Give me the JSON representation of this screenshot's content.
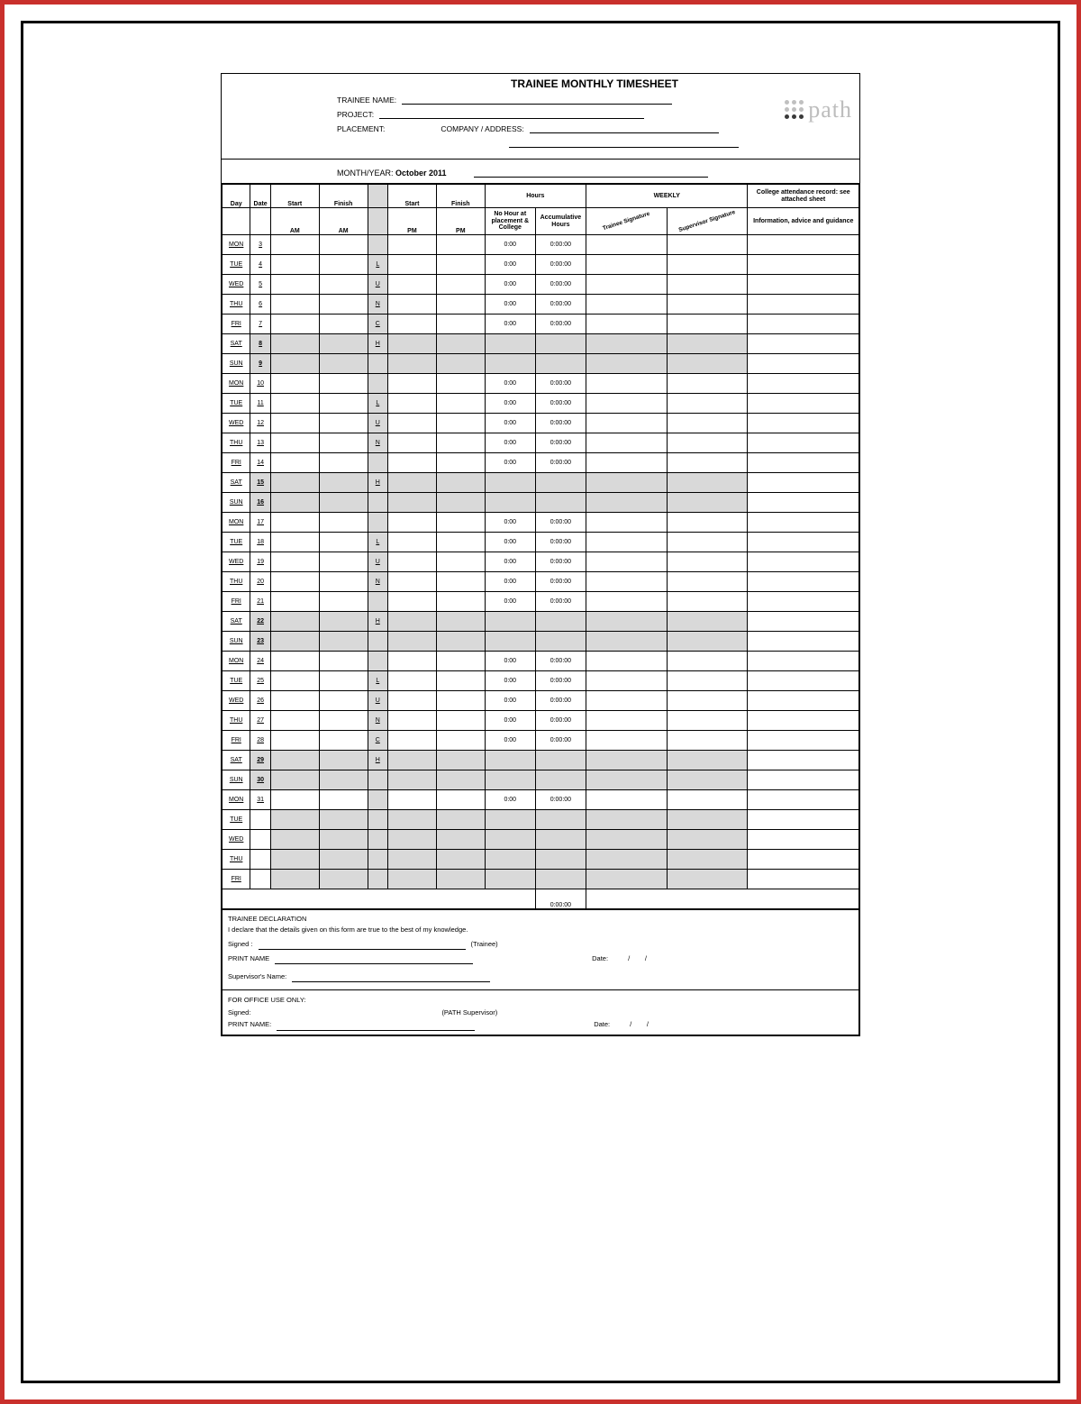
{
  "title": "TRAINEE MONTHLY TIMESHEET",
  "labels": {
    "trainee_name": "TRAINEE NAME:",
    "project": "PROJECT:",
    "placement": "PLACEMENT:",
    "company_address": "COMPANY / ADDRESS:",
    "month_year": "MONTH/YEAR:",
    "month_year_value": "October 2011"
  },
  "logo": {
    "word": "path",
    "dot_colors_grey": "#c0c0c0",
    "dot_colors_dark": "#3a3a3a"
  },
  "headers": {
    "day": "Day",
    "date": "Date",
    "start": "Start",
    "finish": "Finish",
    "hours": "Hours",
    "weekly": "WEEKLY",
    "college_note": "College attendance record: see attached sheet",
    "am": "AM",
    "pm": "PM",
    "no_hour": "No Hour at placement & College",
    "accumulative": "Accumulative Hours",
    "trainee_sig": "Trainee Signature",
    "supervisor_sig": "Supervisor Signature",
    "info": "Information, advice and guidance"
  },
  "rows": [
    {
      "day": "MON",
      "date": "3",
      "lunch": "",
      "h1": "0:00",
      "h2": "0:00:00",
      "weekend": false
    },
    {
      "day": "TUE",
      "date": "4",
      "lunch": "L",
      "h1": "0:00",
      "h2": "0:00:00",
      "weekend": false
    },
    {
      "day": "WED",
      "date": "5",
      "lunch": "U",
      "h1": "0:00",
      "h2": "0:00:00",
      "weekend": false
    },
    {
      "day": "THU",
      "date": "6",
      "lunch": "N",
      "h1": "0:00",
      "h2": "0:00:00",
      "weekend": false
    },
    {
      "day": "FRI",
      "date": "7",
      "lunch": "C",
      "h1": "0:00",
      "h2": "0:00:00",
      "weekend": false
    },
    {
      "day": "SAT",
      "date": "8",
      "lunch": "H",
      "h1": "",
      "h2": "",
      "weekend": true
    },
    {
      "day": "SUN",
      "date": "9",
      "lunch": "",
      "h1": "",
      "h2": "",
      "weekend": true
    },
    {
      "day": "MON",
      "date": "10",
      "lunch": "",
      "h1": "0:00",
      "h2": "0:00:00",
      "weekend": false
    },
    {
      "day": "TUE",
      "date": "11",
      "lunch": "L",
      "h1": "0:00",
      "h2": "0:00:00",
      "weekend": false
    },
    {
      "day": "WED",
      "date": "12",
      "lunch": "U",
      "h1": "0:00",
      "h2": "0:00:00",
      "weekend": false
    },
    {
      "day": "THU",
      "date": "13",
      "lunch": "N",
      "h1": "0:00",
      "h2": "0:00:00",
      "weekend": false
    },
    {
      "day": "FRI",
      "date": "14",
      "lunch": "",
      "h1": "0:00",
      "h2": "0:00:00",
      "weekend": false
    },
    {
      "day": "SAT",
      "date": "15",
      "lunch": "H",
      "h1": "",
      "h2": "",
      "weekend": true
    },
    {
      "day": "SUN",
      "date": "16",
      "lunch": "",
      "h1": "",
      "h2": "",
      "weekend": true
    },
    {
      "day": "MON",
      "date": "17",
      "lunch": "",
      "h1": "0:00",
      "h2": "0:00:00",
      "weekend": false
    },
    {
      "day": "TUE",
      "date": "18",
      "lunch": "L",
      "h1": "0:00",
      "h2": "0:00:00",
      "weekend": false
    },
    {
      "day": "WED",
      "date": "19",
      "lunch": "U",
      "h1": "0:00",
      "h2": "0:00:00",
      "weekend": false
    },
    {
      "day": "THU",
      "date": "20",
      "lunch": "N",
      "h1": "0:00",
      "h2": "0:00:00",
      "weekend": false
    },
    {
      "day": "FRI",
      "date": "21",
      "lunch": "",
      "h1": "0:00",
      "h2": "0:00:00",
      "weekend": false
    },
    {
      "day": "SAT",
      "date": "22",
      "lunch": "H",
      "h1": "",
      "h2": "",
      "weekend": true
    },
    {
      "day": "SUN",
      "date": "23",
      "lunch": "",
      "h1": "",
      "h2": "",
      "weekend": true
    },
    {
      "day": "MON",
      "date": "24",
      "lunch": "",
      "h1": "0:00",
      "h2": "0:00:00",
      "weekend": false
    },
    {
      "day": "TUE",
      "date": "25",
      "lunch": "L",
      "h1": "0:00",
      "h2": "0:00:00",
      "weekend": false
    },
    {
      "day": "WED",
      "date": "26",
      "lunch": "U",
      "h1": "0:00",
      "h2": "0:00:00",
      "weekend": false
    },
    {
      "day": "THU",
      "date": "27",
      "lunch": "N",
      "h1": "0:00",
      "h2": "0:00:00",
      "weekend": false
    },
    {
      "day": "FRI",
      "date": "28",
      "lunch": "C",
      "h1": "0:00",
      "h2": "0:00:00",
      "weekend": false
    },
    {
      "day": "SAT",
      "date": "29",
      "lunch": "H",
      "h1": "",
      "h2": "",
      "weekend": true
    },
    {
      "day": "SUN",
      "date": "30",
      "lunch": "",
      "h1": "",
      "h2": "",
      "weekend": true
    },
    {
      "day": "MON",
      "date": "31",
      "lunch": "",
      "h1": "0:00",
      "h2": "0:00:00",
      "weekend": false
    },
    {
      "day": "TUE",
      "date": "",
      "lunch": "",
      "h1": "",
      "h2": "",
      "weekend": false
    },
    {
      "day": "WED",
      "date": "",
      "lunch": "",
      "h1": "",
      "h2": "",
      "weekend": false
    },
    {
      "day": "THU",
      "date": "",
      "lunch": "",
      "h1": "",
      "h2": "",
      "weekend": false
    },
    {
      "day": "FRI",
      "date": "",
      "lunch": "",
      "h1": "",
      "h2": "",
      "weekend": false
    }
  ],
  "totals": {
    "accumulative": "0:00:00"
  },
  "declaration": {
    "heading": "TRAINEE DECLARATION",
    "text": "I declare that the details given on this form are true to the best of my knowledge.",
    "signed": "Signed :",
    "trainee_tag": "(Trainee)",
    "print_name": "PRINT NAME",
    "date": "Date:",
    "date_sep": "/        /",
    "supervisor_name": "Supervisor's Name:"
  },
  "office": {
    "heading": "FOR OFFICE USE ONLY:",
    "signed": "Signed:",
    "path_sup": "(PATH Supervisor)",
    "print_name": "PRINT NAME:",
    "date": "Date:",
    "date_sep": "/        /"
  },
  "footer_id": "",
  "colors": {
    "grey_fill": "#d9d9d9",
    "border": "#000000",
    "outer_border": "#c9302c"
  }
}
